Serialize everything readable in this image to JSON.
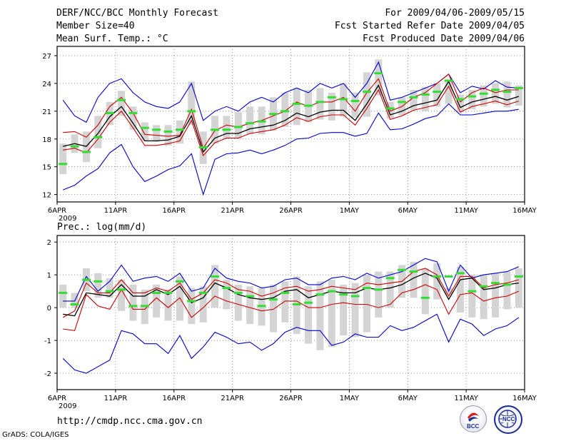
{
  "header": {
    "title": "DERF/NCC/BCC Monthly Forecast",
    "member_size": "Member Size=40",
    "variable": "Mean Surf. Temp.: °C",
    "period": "For 2009/04/06-2009/05/15",
    "refer_date": "Fcst Started Refer Date 2009/04/05",
    "produced_date": "Fcst Produced Date 2009/04/06"
  },
  "footer": {
    "url": "http://cmdp.ncc.cma.gov.cn",
    "credit": "GrADS: COLA/IGES",
    "logo_left": "BCC",
    "logo_right": "NCC"
  },
  "colors": {
    "envelope": "#0000cc",
    "spread": "#cc0000",
    "mean": "#000000",
    "median": "#33dd33",
    "box": "#d4d4d4"
  },
  "chart_data": [
    {
      "type": "line",
      "title": "Mean Surf. Temp.: °C",
      "x_tick_labels": [
        "6APR",
        "11APR",
        "16APR",
        "21APR",
        "26APR",
        "1MAY",
        "6MAY",
        "11MAY",
        "16MAY"
      ],
      "x_year_label": "2009",
      "y_ticks": [
        12,
        15,
        18,
        21,
        24,
        27
      ],
      "ylim": [
        11.2,
        28
      ],
      "days": 40,
      "series": [
        {
          "name": "max",
          "values": [
            22.2,
            20.5,
            19.8,
            22.5,
            24,
            24.5,
            23,
            22,
            21.5,
            21.3,
            22,
            24,
            20,
            21,
            21.5,
            21,
            22,
            22.5,
            22,
            23,
            23.5,
            23,
            24,
            23.5,
            24,
            22.5,
            24,
            26.3,
            22.2,
            22.5,
            23,
            23.5,
            24,
            25,
            23,
            23.7,
            23.4,
            24.3,
            23.6,
            23.5
          ]
        },
        {
          "name": "upper",
          "values": [
            18.7,
            18.8,
            18.2,
            19.5,
            21.5,
            22.5,
            20.8,
            18.5,
            18.4,
            18.3,
            18.4,
            21.2,
            17,
            18.9,
            19.5,
            19.3,
            19.7,
            20,
            20.5,
            21,
            22,
            21.5,
            22,
            22,
            22.5,
            21,
            23,
            24.5,
            21,
            21.5,
            22.5,
            23,
            24,
            25,
            22,
            23,
            23.5,
            23,
            23.3,
            23.3
          ]
        },
        {
          "name": "mean",
          "values": [
            17.2,
            17.5,
            17.2,
            18.6,
            20.4,
            21.5,
            19.7,
            17.8,
            17.8,
            17.9,
            18.3,
            20.5,
            16.6,
            18.1,
            18.6,
            18.6,
            19.1,
            19.3,
            19.5,
            20,
            20.8,
            20.4,
            20.9,
            21.1,
            21.1,
            20,
            21.8,
            23.8,
            20.6,
            21,
            21.6,
            21.9,
            22.2,
            24.2,
            21.4,
            22,
            22.3,
            22.6,
            22.2,
            22.6
          ]
        },
        {
          "name": "lower",
          "values": [
            16.8,
            17,
            16.5,
            18,
            19.8,
            21,
            19.2,
            17.3,
            17.3,
            17.5,
            17.8,
            20,
            16.2,
            17.6,
            18.1,
            18.1,
            18.6,
            18.8,
            19,
            19.5,
            20.3,
            19.9,
            20.4,
            20.6,
            20.6,
            19.5,
            21.3,
            23.3,
            20.1,
            20.5,
            21.1,
            21.4,
            21.7,
            23.7,
            20.9,
            21.5,
            21.8,
            22.1,
            21.7,
            22.1
          ]
        },
        {
          "name": "min",
          "values": [
            12.5,
            13,
            14,
            14.8,
            16.5,
            17.4,
            15,
            13.4,
            14,
            14.7,
            15.1,
            16.4,
            12,
            15.8,
            16.4,
            16.5,
            16.8,
            16.4,
            16.8,
            17.3,
            18,
            18.1,
            18.6,
            18.7,
            18.7,
            18.3,
            18.6,
            20.8,
            19,
            19.1,
            19.6,
            20.2,
            20.5,
            21.8,
            20.6,
            20.6,
            20.8,
            21,
            21,
            21.2
          ]
        },
        {
          "name": "median",
          "values": [
            15.3,
            17.2,
            16.6,
            18.2,
            20.8,
            22.2,
            20.8,
            19.2,
            19,
            18.8,
            19,
            21,
            17.1,
            19,
            19,
            19.3,
            19.7,
            19.9,
            20.7,
            21,
            21.8,
            21.6,
            22,
            22.5,
            22.3,
            22.1,
            23.1,
            25.1,
            21.3,
            22,
            22.5,
            22.8,
            23.1,
            24.3,
            22.3,
            22.6,
            22.9,
            23.3,
            23.1,
            23.5
          ]
        },
        {
          "name": "box_low",
          "values": [
            14.2,
            16.5,
            15.5,
            17,
            19.5,
            20.5,
            19,
            17.8,
            17.7,
            17.3,
            17.5,
            19.5,
            15.3,
            17.5,
            18,
            18,
            18.5,
            18.5,
            18.9,
            19.3,
            19.5,
            19.8,
            20.1,
            20,
            20.4,
            20.3,
            20.4,
            22.7,
            20.2,
            20.6,
            21.1,
            21,
            21.5,
            21.8,
            20.9,
            21.2,
            21.5,
            21.8,
            21.4,
            21.6
          ]
        },
        {
          "name": "box_high",
          "values": [
            17.5,
            18.5,
            18.8,
            20.5,
            22,
            23.2,
            21.5,
            19.8,
            19.5,
            19.5,
            20,
            24.2,
            18.8,
            20.5,
            20.5,
            20.9,
            21.5,
            21.5,
            22.5,
            23,
            23.5,
            23.3,
            23.5,
            23,
            24,
            23,
            25.2,
            26.6,
            22,
            22.5,
            23.3,
            23.6,
            24,
            24.2,
            22.8,
            23.3,
            23.8,
            24,
            24.2,
            23.8
          ]
        }
      ]
    },
    {
      "type": "line",
      "title": "Prec.: log(mm/d)",
      "x_tick_labels": [
        "6APR",
        "11APR",
        "16APR",
        "21APR",
        "26APR",
        "1MAY",
        "6MAY",
        "11MAY",
        "16MAY"
      ],
      "x_year_label": "2009",
      "y_ticks": [
        -2,
        -1,
        0,
        1,
        2
      ],
      "ylim": [
        -2.5,
        2.2
      ],
      "days": 40,
      "series": [
        {
          "name": "max",
          "values": [
            0.2,
            0.2,
            0.95,
            0.5,
            0.8,
            1.3,
            0.8,
            0.9,
            0.95,
            0.8,
            1.05,
            0.5,
            0.6,
            1.2,
            0.9,
            0.8,
            0.75,
            0.6,
            0.65,
            0.85,
            0.9,
            0.7,
            0.7,
            0.9,
            0.95,
            0.85,
            1.05,
            0.9,
            1,
            1.1,
            1.3,
            1.5,
            1.4,
            0.5,
            1.3,
            0.9,
            1,
            1.05,
            1.1,
            1.25
          ]
        },
        {
          "name": "upper",
          "values": [
            -0.3,
            -0.1,
            0.75,
            0.45,
            0.45,
            0.85,
            0.45,
            0.45,
            0.6,
            0.5,
            0.75,
            0.25,
            0.45,
            0.85,
            0.75,
            0.55,
            0.5,
            0.35,
            0.45,
            0.6,
            0.65,
            0.5,
            0.55,
            0.65,
            0.6,
            0.55,
            0.75,
            0.7,
            0.75,
            0.8,
            1.1,
            1.2,
            1,
            0.35,
            0.95,
            0.95,
            0.6,
            0.7,
            0.75,
            0.85
          ]
        },
        {
          "name": "mean",
          "values": [
            -0.2,
            -0.25,
            0.45,
            0.4,
            0.35,
            0.7,
            0.35,
            0.35,
            0.55,
            0.4,
            0.65,
            0.15,
            0.3,
            0.75,
            0.6,
            0.4,
            0.3,
            0.25,
            0.3,
            0.5,
            0.55,
            0.3,
            0.4,
            0.5,
            0.45,
            0.45,
            0.6,
            0.55,
            0.6,
            0.7,
            0.9,
            1.05,
            0.9,
            0.25,
            0.85,
            0.9,
            0.55,
            0.6,
            0.7,
            0.75
          ]
        },
        {
          "name": "lower",
          "values": [
            -0.65,
            -0.7,
            0.4,
            0.05,
            -0.05,
            0.55,
            -0.05,
            -0.05,
            0.3,
            0,
            0.3,
            -0.3,
            0,
            0.35,
            0.2,
            0.1,
            0,
            -0.1,
            -0.05,
            0.2,
            0.2,
            0,
            0,
            0.1,
            0.15,
            0.1,
            0.1,
            0,
            0.1,
            0.45,
            0.55,
            0.7,
            0.55,
            -0.2,
            0.4,
            0.45,
            0.2,
            0.3,
            0.35,
            0.5
          ]
        },
        {
          "name": "min",
          "values": [
            -1.55,
            -1.9,
            -2,
            -1.8,
            -1.6,
            -0.7,
            -0.8,
            -1.1,
            -1.1,
            -1.4,
            -0.85,
            -1.55,
            -1.2,
            -0.75,
            -0.9,
            -1.1,
            -1.05,
            -1.3,
            -1.1,
            -0.75,
            -0.6,
            -0.7,
            -0.7,
            -1.15,
            -1.05,
            -0.8,
            -0.9,
            -0.9,
            -0.55,
            -0.7,
            -0.6,
            -0.4,
            -0.2,
            -1.05,
            -0.35,
            -0.5,
            -0.85,
            -0.65,
            -0.55,
            -0.3
          ]
        },
        {
          "name": "median",
          "values": [
            0.45,
            0.1,
            0.85,
            0.8,
            0.5,
            0.55,
            0.05,
            0.05,
            0.45,
            0.45,
            0.8,
            0.2,
            0.45,
            0.95,
            0.6,
            0.45,
            0.35,
            0.05,
            0.25,
            0.45,
            0.1,
            0.15,
            0.4,
            0.5,
            0.4,
            0.35,
            0.6,
            0.55,
            0.9,
            1.15,
            1.1,
            0.3,
            0.95,
            0.95,
            1.05,
            0.5,
            0.65,
            0.75,
            0.7,
            0.95
          ]
        },
        {
          "name": "box_low",
          "values": [
            0,
            0,
            0.5,
            0.3,
            0.3,
            -0.1,
            -0.4,
            -0.5,
            -0.3,
            -0.4,
            -0.4,
            -0.5,
            -0.45,
            0,
            -0.05,
            -0.4,
            -0.5,
            -0.55,
            -0.75,
            -0.45,
            -0.8,
            -1.1,
            -1.3,
            -1.2,
            -0.85,
            -0.9,
            -0.75,
            -0.3,
            0,
            0.3,
            0.3,
            -0.2,
            0.25,
            0.4,
            -0.15,
            -0.3,
            -0.35,
            -0.3,
            -0.05,
            0
          ]
        },
        {
          "name": "box_high",
          "values": [
            0.7,
            0.45,
            1.2,
            1.05,
            0.9,
            0.85,
            0.7,
            0.55,
            0.7,
            0.55,
            0.95,
            0.6,
            0.65,
            1.3,
            0.85,
            0.7,
            0.65,
            0.6,
            0.7,
            0.8,
            0.95,
            0.65,
            0.8,
            0.85,
            0.7,
            0.75,
            1,
            1.1,
            1.1,
            1.3,
            1.4,
            1.2,
            1.35,
            0.6,
            1.25,
            1,
            1,
            1.05,
            1.1,
            1.2
          ]
        }
      ]
    }
  ]
}
